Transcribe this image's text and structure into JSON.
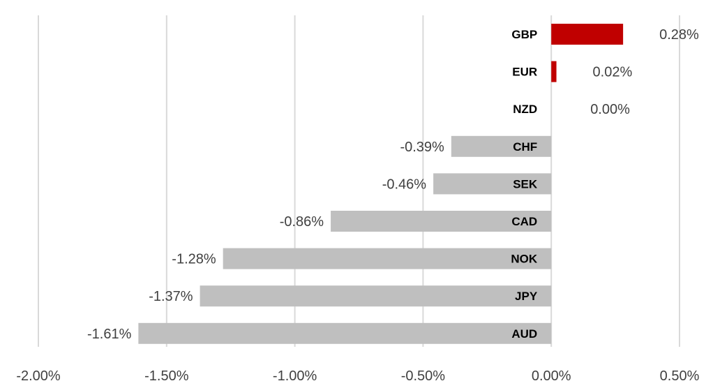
{
  "chart_data": {
    "type": "bar",
    "orientation": "horizontal",
    "title": "",
    "xlabel": "",
    "ylabel": "",
    "categories": [
      "GBP",
      "EUR",
      "NZD",
      "CHF",
      "SEK",
      "CAD",
      "NOK",
      "JPY",
      "AUD"
    ],
    "values": [
      0.28,
      0.02,
      0.0,
      -0.39,
      -0.46,
      -0.86,
      -1.28,
      -1.37,
      -1.61
    ],
    "value_labels": [
      "0.28%",
      "0.02%",
      "0.00%",
      "-0.39%",
      "-0.46%",
      "-0.86%",
      "-1.28%",
      "-1.37%",
      "-1.61%"
    ],
    "xlim": [
      -2.0,
      0.5
    ],
    "xticks": [
      -2.0,
      -1.5,
      -1.0,
      -0.5,
      0.0,
      0.5
    ],
    "xtick_labels": [
      "-2.00%",
      "-1.50%",
      "-1.00%",
      "-0.50%",
      "0.00%",
      "0.50%"
    ],
    "grid": true,
    "legend": "none",
    "colors": {
      "positive": "#c00000",
      "negative": "#bfbfbf",
      "grid": "#d9d9d9"
    }
  }
}
